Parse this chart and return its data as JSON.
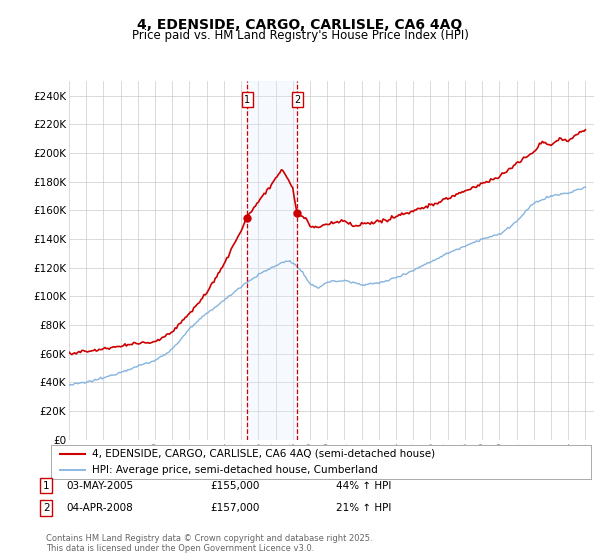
{
  "title": "4, EDENSIDE, CARGO, CARLISLE, CA6 4AQ",
  "subtitle": "Price paid vs. HM Land Registry's House Price Index (HPI)",
  "ylim": [
    0,
    250000
  ],
  "yticks": [
    0,
    20000,
    40000,
    60000,
    80000,
    100000,
    120000,
    140000,
    160000,
    180000,
    200000,
    220000,
    240000
  ],
  "ytick_labels": [
    "£0",
    "£20K",
    "£40K",
    "£60K",
    "£80K",
    "£100K",
    "£120K",
    "£140K",
    "£160K",
    "£180K",
    "£200K",
    "£220K",
    "£240K"
  ],
  "line1_color": "#cc0000",
  "line2_color": "#7aaddb",
  "vline_color": "#cc0000",
  "shade_color": "#ddeeff",
  "transaction1_year": 2005.35,
  "transaction1_price": 155000,
  "transaction2_year": 2008.25,
  "transaction2_price": 157000,
  "legend_line1": "4, EDENSIDE, CARGO, CARLISLE, CA6 4AQ (semi-detached house)",
  "legend_line2": "HPI: Average price, semi-detached house, Cumberland",
  "table_rows": [
    {
      "num": "1",
      "date": "03-MAY-2005",
      "price": "£155,000",
      "change": "44% ↑ HPI"
    },
    {
      "num": "2",
      "date": "04-APR-2008",
      "price": "£157,000",
      "change": "21% ↑ HPI"
    }
  ],
  "footer": "Contains HM Land Registry data © Crown copyright and database right 2025.\nThis data is licensed under the Open Government Licence v3.0.",
  "background_color": "#ffffff",
  "grid_color": "#cccccc"
}
